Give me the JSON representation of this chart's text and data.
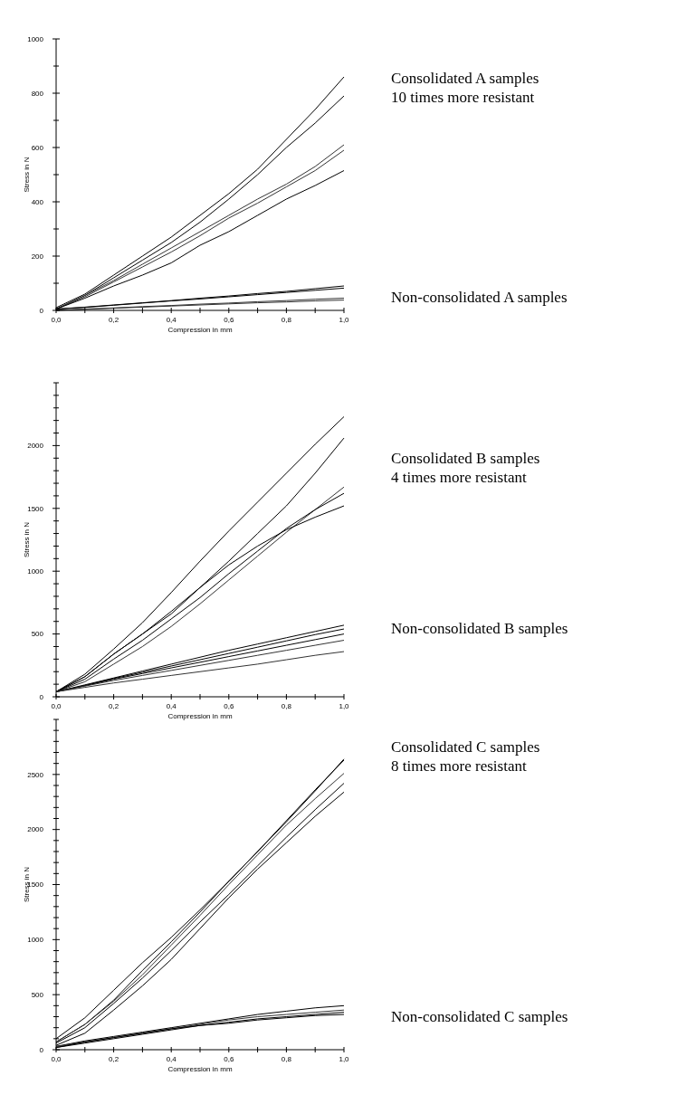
{
  "chart_data": [
    {
      "type": "line",
      "xlabel": "Compression  in mm",
      "ylabel": "Stress in N",
      "xlim": [
        0,
        1
      ],
      "ylim": [
        0,
        1000
      ],
      "xticks": [
        {
          "value": 0,
          "label": "0,0"
        },
        {
          "value": 0.1,
          "label": null
        },
        {
          "value": 0.2,
          "label": "0,2"
        },
        {
          "value": 0.3,
          "label": null
        },
        {
          "value": 0.4,
          "label": "0,4"
        },
        {
          "value": 0.5,
          "label": null
        },
        {
          "value": 0.6,
          "label": "0,6"
        },
        {
          "value": 0.7,
          "label": null
        },
        {
          "value": 0.8,
          "label": "0,8"
        },
        {
          "value": 0.9,
          "label": null
        },
        {
          "value": 1,
          "label": "1,0"
        }
      ],
      "yticks": [
        0,
        {
          "value": 100,
          "label": null
        },
        200,
        {
          "value": 300,
          "label": null
        },
        400,
        {
          "value": 500,
          "label": null
        },
        600,
        {
          "value": 700,
          "label": null
        },
        800,
        {
          "value": 900,
          "label": null
        },
        1000
      ],
      "x": [
        0,
        0.1,
        0.2,
        0.3,
        0.4,
        0.5,
        0.6,
        0.7,
        0.8,
        0.9,
        1
      ],
      "series": [
        {
          "color": "#000000",
          "values": [
            10,
            60,
            130,
            200,
            270,
            350,
            430,
            520,
            630,
            740,
            860
          ]
        },
        {
          "color": "#000000",
          "values": [
            5,
            55,
            120,
            185,
            250,
            325,
            410,
            500,
            600,
            690,
            790
          ]
        },
        {
          "color": "#333333",
          "values": [
            5,
            55,
            110,
            170,
            230,
            290,
            350,
            410,
            465,
            530,
            610
          ]
        },
        {
          "color": "#333333",
          "values": [
            5,
            50,
            105,
            160,
            215,
            275,
            340,
            395,
            455,
            515,
            590
          ]
        },
        {
          "color": "#000000",
          "values": [
            5,
            45,
            90,
            130,
            175,
            240,
            290,
            350,
            410,
            460,
            515
          ]
        },
        {
          "color": "#000000",
          "values": [
            5,
            12,
            20,
            28,
            36,
            45,
            53,
            62,
            70,
            80,
            90
          ]
        },
        {
          "color": "#000000",
          "values": [
            5,
            11,
            19,
            27,
            35,
            42,
            50,
            58,
            66,
            74,
            82
          ]
        },
        {
          "color": "#333333",
          "values": [
            0,
            5,
            9,
            14,
            18,
            23,
            27,
            32,
            36,
            41,
            45
          ]
        },
        {
          "color": "#333333",
          "values": [
            0,
            4,
            8,
            12,
            16,
            20,
            24,
            28,
            31,
            35,
            38
          ]
        }
      ],
      "annotations": [
        "Consolidated A samples\n10 times more resistant",
        "Non-consolidated A samples"
      ]
    },
    {
      "type": "line",
      "xlabel": "Compression  in mm",
      "ylabel": "Stress in N",
      "xlim": [
        0,
        1
      ],
      "ylim": [
        0,
        2500
      ],
      "xticks": [
        {
          "value": 0,
          "label": "0,0"
        },
        {
          "value": 0.1,
          "label": null
        },
        {
          "value": 0.2,
          "label": "0,2"
        },
        {
          "value": 0.3,
          "label": null
        },
        {
          "value": 0.4,
          "label": "0,4"
        },
        {
          "value": 0.5,
          "label": null
        },
        {
          "value": 0.6,
          "label": "0,6"
        },
        {
          "value": 0.7,
          "label": null
        },
        {
          "value": 0.8,
          "label": "0,8"
        },
        {
          "value": 0.9,
          "label": null
        },
        {
          "value": 1,
          "label": "1,0"
        }
      ],
      "yticks": [
        0,
        {
          "value": 100,
          "label": null
        },
        {
          "value": 200,
          "label": null
        },
        {
          "value": 300,
          "label": null
        },
        {
          "value": 400,
          "label": null
        },
        500,
        {
          "value": 600,
          "label": null
        },
        {
          "value": 700,
          "label": null
        },
        {
          "value": 800,
          "label": null
        },
        {
          "value": 900,
          "label": null
        },
        1000,
        {
          "value": 1100,
          "label": null
        },
        {
          "value": 1200,
          "label": null
        },
        {
          "value": 1300,
          "label": null
        },
        {
          "value": 1400,
          "label": null
        },
        1500,
        {
          "value": 1600,
          "label": null
        },
        {
          "value": 1700,
          "label": null
        },
        {
          "value": 1800,
          "label": null
        },
        {
          "value": 1900,
          "label": null
        },
        2000,
        {
          "value": 2100,
          "label": null
        },
        {
          "value": 2200,
          "label": null
        },
        {
          "value": 2300,
          "label": null
        },
        {
          "value": 2400,
          "label": null
        },
        {
          "value": 2500,
          "label": null
        }
      ],
      "x": [
        0,
        0.1,
        0.2,
        0.3,
        0.4,
        0.5,
        0.6,
        0.7,
        0.8,
        0.9,
        1
      ],
      "series": [
        {
          "color": "#000000",
          "values": [
            40,
            180,
            380,
            590,
            830,
            1080,
            1320,
            1550,
            1780,
            2010,
            2230
          ]
        },
        {
          "color": "#000000",
          "values": [
            40,
            160,
            340,
            500,
            660,
            870,
            1080,
            1300,
            1520,
            1780,
            2060
          ]
        },
        {
          "color": "#333333",
          "values": [
            40,
            120,
            260,
            400,
            560,
            740,
            930,
            1120,
            1310,
            1490,
            1670
          ]
        },
        {
          "color": "#000000",
          "values": [
            40,
            140,
            300,
            450,
            620,
            790,
            980,
            1160,
            1340,
            1490,
            1620
          ]
        },
        {
          "color": "#000000",
          "values": [
            40,
            160,
            340,
            500,
            680,
            870,
            1050,
            1200,
            1330,
            1430,
            1520
          ]
        },
        {
          "color": "#000000",
          "values": [
            40,
            95,
            150,
            205,
            260,
            315,
            370,
            420,
            470,
            520,
            570
          ]
        },
        {
          "color": "#000000",
          "values": [
            40,
            90,
            145,
            195,
            245,
            295,
            345,
            395,
            445,
            495,
            540
          ]
        },
        {
          "color": "#000000",
          "values": [
            40,
            88,
            140,
            185,
            230,
            275,
            320,
            365,
            410,
            455,
            500
          ]
        },
        {
          "color": "#333333",
          "values": [
            40,
            85,
            130,
            170,
            210,
            250,
            290,
            330,
            370,
            410,
            450
          ]
        },
        {
          "color": "#333333",
          "values": [
            40,
            75,
            110,
            140,
            170,
            200,
            230,
            260,
            295,
            330,
            360
          ]
        }
      ],
      "annotations": [
        "Consolidated B samples\n4 times more resistant",
        "Non-consolidated B samples"
      ]
    },
    {
      "type": "line",
      "xlabel": "Compression  in mm",
      "ylabel": "Stress in N",
      "xlim": [
        0,
        1
      ],
      "ylim": [
        0,
        3000
      ],
      "xticks": [
        {
          "value": 0,
          "label": "0,0"
        },
        {
          "value": 0.1,
          "label": null
        },
        {
          "value": 0.2,
          "label": "0,2"
        },
        {
          "value": 0.3,
          "label": null
        },
        {
          "value": 0.4,
          "label": "0,4"
        },
        {
          "value": 0.5,
          "label": null
        },
        {
          "value": 0.6,
          "label": "0,6"
        },
        {
          "value": 0.7,
          "label": null
        },
        {
          "value": 0.8,
          "label": "0,8"
        },
        {
          "value": 0.9,
          "label": null
        },
        {
          "value": 1,
          "label": "1,0"
        }
      ],
      "yticks": [
        0,
        {
          "value": 100,
          "label": null
        },
        {
          "value": 200,
          "label": null
        },
        {
          "value": 300,
          "label": null
        },
        {
          "value": 400,
          "label": null
        },
        500,
        {
          "value": 600,
          "label": null
        },
        {
          "value": 700,
          "label": null
        },
        {
          "value": 800,
          "label": null
        },
        {
          "value": 900,
          "label": null
        },
        1000,
        {
          "value": 1100,
          "label": null
        },
        {
          "value": 1200,
          "label": null
        },
        {
          "value": 1300,
          "label": null
        },
        {
          "value": 1400,
          "label": null
        },
        1500,
        {
          "value": 1600,
          "label": null
        },
        {
          "value": 1700,
          "label": null
        },
        {
          "value": 1800,
          "label": null
        },
        {
          "value": 1900,
          "label": null
        },
        2000,
        {
          "value": 2100,
          "label": null
        },
        {
          "value": 2200,
          "label": null
        },
        {
          "value": 2300,
          "label": null
        },
        {
          "value": 2400,
          "label": null
        },
        2500,
        {
          "value": 2600,
          "label": null
        },
        {
          "value": 2700,
          "label": null
        },
        {
          "value": 2800,
          "label": null
        },
        {
          "value": 2900,
          "label": null
        },
        {
          "value": 3000,
          "label": null
        }
      ],
      "x": [
        0,
        0.1,
        0.2,
        0.3,
        0.4,
        0.5,
        0.6,
        0.7,
        0.8,
        0.9,
        1
      ],
      "series": [
        {
          "color": "#000000",
          "values": [
            100,
            290,
            540,
            790,
            1020,
            1270,
            1530,
            1800,
            2070,
            2350,
            2640
          ]
        },
        {
          "color": "#000000",
          "values": [
            70,
            230,
            450,
            720,
            980,
            1250,
            1530,
            1800,
            2080,
            2360,
            2630
          ]
        },
        {
          "color": "#333333",
          "values": [
            70,
            230,
            440,
            680,
            950,
            1220,
            1500,
            1770,
            2040,
            2280,
            2510
          ]
        },
        {
          "color": "#000000",
          "values": [
            60,
            200,
            420,
            650,
            900,
            1160,
            1410,
            1670,
            1930,
            2180,
            2420
          ]
        },
        {
          "color": "#000000",
          "values": [
            40,
            150,
            360,
            580,
            820,
            1100,
            1380,
            1640,
            1880,
            2120,
            2340
          ]
        },
        {
          "color": "#000000",
          "values": [
            30,
            80,
            120,
            160,
            200,
            240,
            280,
            320,
            350,
            380,
            400
          ]
        },
        {
          "color": "#333333",
          "values": [
            30,
            70,
            110,
            150,
            190,
            230,
            270,
            300,
            320,
            340,
            360
          ]
        },
        {
          "color": "#000000",
          "values": [
            20,
            70,
            110,
            150,
            190,
            220,
            250,
            280,
            300,
            320,
            340
          ]
        },
        {
          "color": "#000000",
          "values": [
            20,
            60,
            100,
            140,
            180,
            220,
            240,
            270,
            290,
            310,
            320
          ]
        }
      ],
      "annotations": [
        "Consolidated C samples\n8 times more resistant",
        "Non-consolidated C samples"
      ]
    }
  ]
}
